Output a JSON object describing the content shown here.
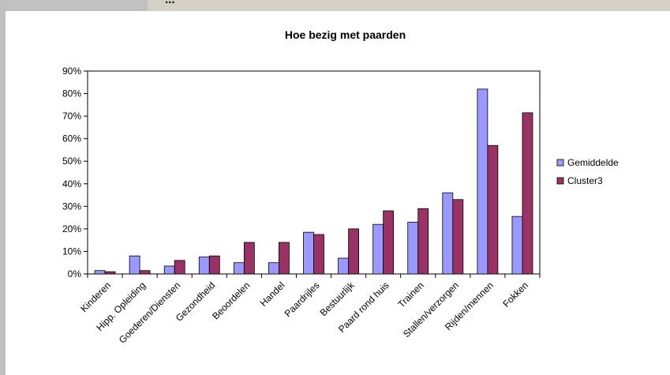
{
  "window": {
    "header_text": "..."
  },
  "chart_data": {
    "type": "bar",
    "title": "Hoe bezig met paarden",
    "xlabel": "",
    "ylabel": "",
    "ylim": [
      0,
      90
    ],
    "yticks": [
      "0%",
      "10%",
      "20%",
      "30%",
      "40%",
      "50%",
      "60%",
      "70%",
      "80%",
      "90%"
    ],
    "grid": false,
    "legend_position": "right",
    "categories": [
      "Kinderen",
      "Hipp. Opleiding",
      "Goederen/Diensten",
      "Gezondheid",
      "Beoordelen",
      "Handel",
      "Paardrijles",
      "Bestuurlijk",
      "Paard rond huis",
      "Trainen",
      "Stallen/verzorgen",
      "Rijden/mennen",
      "Fokken"
    ],
    "series": [
      {
        "name": "Gemiddelde",
        "color": "#9999ff",
        "values": [
          1.5,
          8,
          3.5,
          7.5,
          5,
          5,
          18.5,
          7,
          22,
          23,
          36,
          82,
          25.5
        ]
      },
      {
        "name": "Cluster3",
        "color": "#993366",
        "values": [
          1,
          1.5,
          6,
          8,
          14,
          14,
          17.5,
          20,
          28,
          29,
          33,
          57,
          71.5
        ]
      }
    ]
  }
}
